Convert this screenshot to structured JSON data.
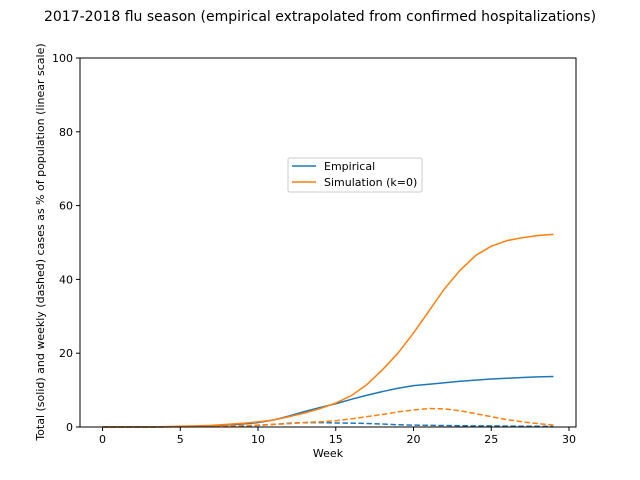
{
  "chart_data": {
    "type": "line",
    "title": "2017-2018 flu season (empirical extrapolated from confirmed hospitalizations)",
    "xlabel": "Week",
    "ylabel": "Total (solid) and weekly (dashed) cases as % of population (linear scale)",
    "xlim": [
      -1.45,
      30.45
    ],
    "ylim": [
      0,
      100
    ],
    "xticks": [
      0,
      5,
      10,
      15,
      20,
      25,
      30
    ],
    "yticks": [
      0,
      20,
      40,
      60,
      80,
      100
    ],
    "grid": false,
    "legend_position": "center",
    "x": [
      0,
      1,
      2,
      3,
      4,
      5,
      6,
      7,
      8,
      9,
      10,
      11,
      12,
      13,
      14,
      15,
      16,
      17,
      18,
      19,
      20,
      21,
      22,
      23,
      24,
      25,
      26,
      27,
      28,
      29
    ],
    "series": [
      {
        "name": "Empirical",
        "color": "#1f77b4",
        "linestyle": "solid",
        "values": [
          0,
          0,
          0,
          0,
          0.05,
          0.1,
          0.2,
          0.35,
          0.55,
          0.8,
          1.2,
          1.9,
          3.0,
          4.2,
          5.3,
          6.3,
          7.5,
          8.6,
          9.6,
          10.5,
          11.2,
          11.6,
          12.0,
          12.4,
          12.7,
          13.0,
          13.2,
          13.4,
          13.6,
          13.7
        ]
      },
      {
        "name": "Simulation (k=0)",
        "color": "#ff7f0e",
        "linestyle": "solid",
        "values": [
          0,
          0,
          0,
          0.05,
          0.1,
          0.2,
          0.3,
          0.45,
          0.7,
          1.0,
          1.4,
          1.9,
          2.8,
          3.8,
          5.0,
          6.5,
          8.5,
          11.5,
          15.5,
          20.0,
          25.5,
          31.5,
          37.5,
          42.5,
          46.5,
          49.0,
          50.5,
          51.3,
          51.9,
          52.2
        ]
      },
      {
        "color": "#1f77b4",
        "linestyle": "dashed",
        "values": [
          0,
          0,
          0,
          0,
          0.02,
          0.05,
          0.1,
          0.15,
          0.2,
          0.3,
          0.45,
          0.7,
          1.0,
          1.2,
          1.2,
          1.1,
          1.05,
          0.95,
          0.8,
          0.6,
          0.5,
          0.45,
          0.4,
          0.35,
          0.3,
          0.3,
          0.25,
          0.2,
          0.2,
          0.15
        ]
      },
      {
        "color": "#ff7f0e",
        "linestyle": "dashed",
        "values": [
          0,
          0,
          0,
          0.02,
          0.05,
          0.08,
          0.12,
          0.18,
          0.25,
          0.35,
          0.5,
          0.7,
          0.9,
          1.2,
          1.4,
          1.7,
          2.2,
          2.8,
          3.4,
          4.1,
          4.6,
          5.0,
          4.9,
          4.4,
          3.6,
          2.8,
          2.0,
          1.4,
          0.9,
          0.5
        ]
      }
    ]
  }
}
